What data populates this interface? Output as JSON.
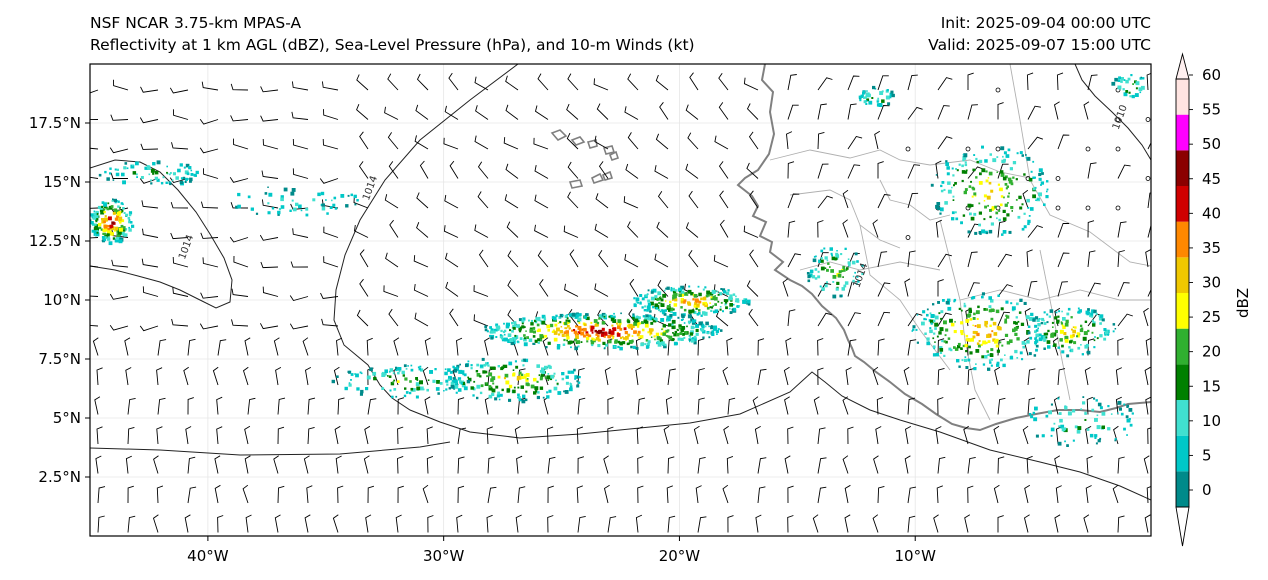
{
  "title": {
    "model": "NSF NCAR 3.75-km MPAS-A",
    "fields": "Reflectivity at 1 km AGL (dBZ), Sea-Level Pressure (hPa), and 10-m Winds (kt)",
    "init": "Init: 2025-09-04 00:00 UTC",
    "valid": "Valid: 2025-09-07 15:00 UTC"
  },
  "map": {
    "lon_range": [
      -45,
      0
    ],
    "lat_range": [
      0,
      20
    ],
    "x_ticks": [
      {
        "lon": -40,
        "label": "40°W"
      },
      {
        "lon": -30,
        "label": "30°W"
      },
      {
        "lon": -20,
        "label": "20°W"
      },
      {
        "lon": -10,
        "label": "10°W"
      }
    ],
    "y_ticks": [
      {
        "lat": 17.5,
        "label": "17.5°N"
      },
      {
        "lat": 15,
        "label": "15°N"
      },
      {
        "lat": 12.5,
        "label": "12.5°N"
      },
      {
        "lat": 10,
        "label": "10°N"
      },
      {
        "lat": 7.5,
        "label": "7.5°N"
      },
      {
        "lat": 5,
        "label": "5°N"
      },
      {
        "lat": 2.5,
        "label": "2.5°N"
      }
    ],
    "contour_labels": [
      {
        "text": "1014",
        "lon": -33.0,
        "lat": 14.7
      },
      {
        "text": "1014",
        "lon": -40.8,
        "lat": 12.2
      },
      {
        "text": "1014",
        "lon": -12.2,
        "lat": 11.0
      },
      {
        "text": "1010",
        "lon": -1.2,
        "lat": 17.7
      }
    ]
  },
  "colorbar": {
    "label": "dBZ",
    "ticks": [
      "0",
      "5",
      "10",
      "15",
      "20",
      "25",
      "30",
      "35",
      "40",
      "45",
      "50",
      "55",
      "60"
    ],
    "colors": [
      "#008a8a",
      "#00c8c8",
      "#40e0d0",
      "#008000",
      "#30b030",
      "#ffff00",
      "#f0c800",
      "#ff8800",
      "#d00000",
      "#8b0000",
      "#ff00ff",
      "#ffe4e1"
    ],
    "under_color": "#ffffff",
    "over_color": "#fff0f0"
  }
}
